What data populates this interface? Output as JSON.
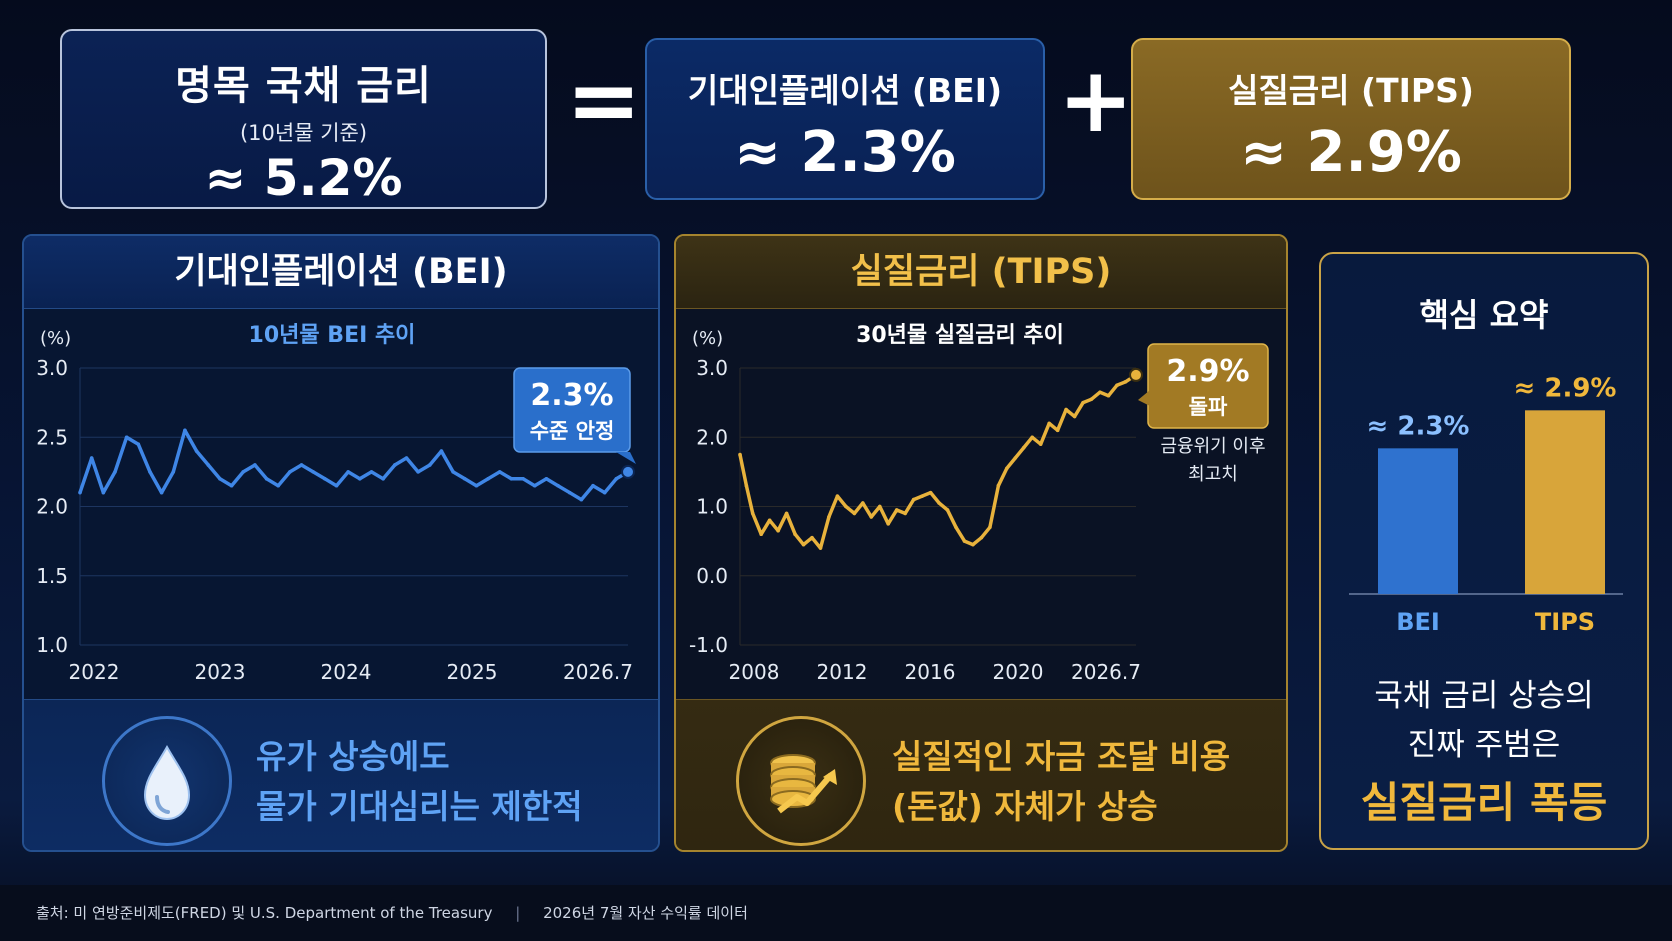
{
  "equation": {
    "nominal_title": "명목 국채 금리",
    "nominal_sub": "(10년물 기준)",
    "nominal_value": "≈ 5.2%",
    "equals": "=",
    "plus": "+",
    "bei_label": "기대인플레이션 (BEI)",
    "bei_value": "≈ 2.3%",
    "tips_label": "실질금리 (TIPS)",
    "tips_value": "≈ 2.9%"
  },
  "bei_panel": {
    "header": "기대인플레이션 (BEI)",
    "footer_line1": "유가 상승에도",
    "footer_line2": "물가 기대심리는 제한적",
    "icon": "water-drop-icon"
  },
  "tips_panel": {
    "header": "실질금리 (TIPS)",
    "footer_line1": "실질적인 자금 조달 비용",
    "footer_line2": "(돈값) 자체가 상승",
    "icon": "coins-rising-arrow-icon"
  },
  "summary": {
    "title": "핵심 요약",
    "text_line1": "국채 금리 상승의",
    "text_line2": "진짜 주범은",
    "emphasis": "실질금리 폭등"
  },
  "source": {
    "text": "출처: 미 연방준비제도(FRED) 및 U.S. Department of the Treasury",
    "sep": "|",
    "date": "2026년 7월 자산 수익률 데이터"
  },
  "colors": {
    "bei": "#3f86e6",
    "tips": "#e8b23c",
    "background": "#071535"
  },
  "chart_data": [
    {
      "type": "line",
      "title": "10년물 BEI 추이",
      "ylabel": "(%)",
      "ylim": [
        1.0,
        3.0
      ],
      "yticks": [
        "3.0",
        "2.5",
        "2.0",
        "1.5",
        "1.0"
      ],
      "xticks": [
        "2022",
        "2023",
        "2024",
        "2025",
        "2026.7"
      ],
      "grid": true,
      "annotation": {
        "value": "2.3%",
        "text": "수준 안정"
      },
      "series": [
        {
          "x": [
            2022.0,
            2022.1,
            2022.2,
            2022.3,
            2022.4,
            2022.5,
            2022.6,
            2022.7,
            2022.8,
            2022.9,
            2023.0,
            2023.1,
            2023.2,
            2023.3,
            2023.4,
            2023.5,
            2023.6,
            2023.7,
            2023.8,
            2023.9,
            2024.0,
            2024.1,
            2024.2,
            2024.3,
            2024.4,
            2024.5,
            2024.6,
            2024.7,
            2024.8,
            2024.9,
            2025.0,
            2025.1,
            2025.2,
            2025.3,
            2025.4,
            2025.5,
            2025.6,
            2025.7,
            2025.8,
            2025.9,
            2026.0,
            2026.1,
            2026.2,
            2026.3,
            2026.4,
            2026.5,
            2026.6,
            2026.7
          ],
          "values": [
            2.1,
            2.35,
            2.1,
            2.25,
            2.5,
            2.45,
            2.25,
            2.1,
            2.25,
            2.55,
            2.4,
            2.3,
            2.2,
            2.15,
            2.25,
            2.3,
            2.2,
            2.15,
            2.25,
            2.3,
            2.25,
            2.2,
            2.15,
            2.25,
            2.2,
            2.25,
            2.2,
            2.3,
            2.35,
            2.25,
            2.3,
            2.4,
            2.25,
            2.2,
            2.15,
            2.2,
            2.25,
            2.2,
            2.2,
            2.15,
            2.2,
            2.15,
            2.1,
            2.05,
            2.15,
            2.1,
            2.2,
            2.25
          ]
        }
      ]
    },
    {
      "type": "line",
      "title": "30년물 실질금리 추이",
      "ylabel": "(%)",
      "ylim": [
        -1.0,
        3.0
      ],
      "yticks": [
        "3.0",
        "2.0",
        "1.0",
        "0.0",
        "-1.0"
      ],
      "xticks": [
        "2008",
        "2012",
        "2016",
        "2020",
        "2026.7"
      ],
      "grid": true,
      "annotation": {
        "value": "2.9%",
        "text": "돌파",
        "note_line1": "금융위기 이후",
        "note_line2": "최고치"
      },
      "series": [
        {
          "x": [
            2008.0,
            2008.3,
            2008.6,
            2009.0,
            2009.4,
            2009.8,
            2010.2,
            2010.6,
            2011.0,
            2011.4,
            2011.8,
            2012.2,
            2012.6,
            2013.0,
            2013.4,
            2013.8,
            2014.2,
            2014.6,
            2015.0,
            2015.4,
            2015.8,
            2016.2,
            2016.6,
            2017.0,
            2017.4,
            2017.8,
            2018.2,
            2018.6,
            2019.0,
            2019.4,
            2019.8,
            2020.2,
            2020.6,
            2021.0,
            2021.4,
            2021.8,
            2022.2,
            2022.6,
            2023.0,
            2023.4,
            2023.8,
            2024.2,
            2024.6,
            2025.0,
            2025.4,
            2025.8,
            2026.2,
            2026.7
          ],
          "values": [
            1.75,
            1.3,
            0.9,
            0.6,
            0.8,
            0.65,
            0.9,
            0.6,
            0.45,
            0.55,
            0.4,
            0.85,
            1.15,
            1.0,
            0.9,
            1.05,
            0.85,
            1.0,
            0.75,
            0.95,
            0.9,
            1.1,
            1.15,
            1.2,
            1.05,
            0.95,
            0.7,
            0.5,
            0.45,
            0.55,
            0.7,
            1.3,
            1.55,
            1.7,
            1.85,
            2.0,
            1.9,
            2.2,
            2.1,
            2.4,
            2.3,
            2.5,
            2.55,
            2.65,
            2.6,
            2.75,
            2.8,
            2.9
          ]
        }
      ]
    },
    {
      "type": "bar",
      "categories": [
        "BEI",
        "TIPS"
      ],
      "values": [
        2.3,
        2.9
      ],
      "labels": [
        "≈ 2.3%",
        "≈ 2.9%"
      ],
      "colors": [
        "#2f72cf",
        "#d8a53a"
      ]
    }
  ]
}
